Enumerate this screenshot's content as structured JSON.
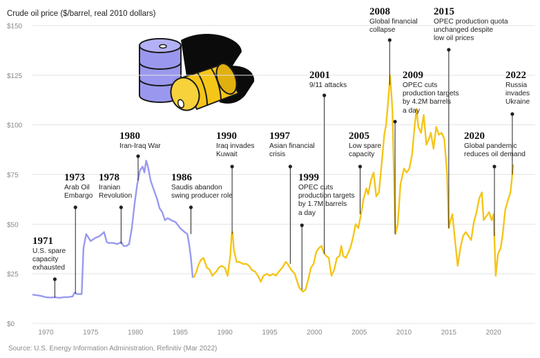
{
  "chart_data": {
    "type": "line",
    "ylabel": "Crude oil price ($/barrel, real 2010 dollars)",
    "source": "Source: U.S. Energy Information Administration, Refinitiv (Mar 2022)",
    "xlim": [
      1968.5,
      2022.8
    ],
    "ylim": [
      0,
      150
    ],
    "x_ticks": [
      1970,
      1975,
      1980,
      1985,
      1990,
      1995,
      2000,
      2005,
      2010,
      2015,
      2020
    ],
    "x_tick_labels": [
      "1970",
      "1975",
      "1980",
      "1985",
      "1990",
      "1995",
      "2000",
      "2005",
      "2010",
      "2015",
      "2020"
    ],
    "y_ticks": [
      0,
      25,
      50,
      75,
      100,
      125,
      150
    ],
    "y_tick_labels": [
      "$0",
      "$25",
      "$50",
      "$75",
      "$100",
      "$125",
      "$150"
    ],
    "grid": "horizontal",
    "colors": {
      "series1": "#9999f0",
      "series2": "#f5c518",
      "gridline": "#e3e3e3",
      "leader": "#222222"
    },
    "series": [
      {
        "color": "#9999f0",
        "points": [
          [
            1968.5,
            14.5
          ],
          [
            1969,
            14.2
          ],
          [
            1969.5,
            13.8
          ],
          [
            1970,
            13.2
          ],
          [
            1970.5,
            13
          ],
          [
            1971,
            13.2
          ],
          [
            1971.5,
            12.9
          ],
          [
            1972,
            13.2
          ],
          [
            1972.5,
            13.3
          ],
          [
            1973,
            13.6
          ],
          [
            1973.2,
            15.5
          ],
          [
            1973.5,
            14.8
          ],
          [
            1974,
            14.8
          ],
          [
            1974.2,
            38
          ],
          [
            1974.5,
            45
          ],
          [
            1975,
            41.5
          ],
          [
            1975.5,
            43
          ],
          [
            1976,
            44
          ],
          [
            1976.5,
            46
          ],
          [
            1976.8,
            41
          ],
          [
            1977,
            40.5
          ],
          [
            1977.5,
            40.5
          ],
          [
            1978,
            40
          ],
          [
            1978.4,
            41
          ],
          [
            1978.7,
            39
          ],
          [
            1979,
            39
          ],
          [
            1979.3,
            40
          ],
          [
            1979.6,
            48
          ],
          [
            1979.9,
            60
          ],
          [
            1980.2,
            70
          ],
          [
            1980.5,
            77
          ],
          [
            1980.8,
            79
          ],
          [
            1981,
            76
          ],
          [
            1981.2,
            82
          ],
          [
            1981.4,
            79
          ],
          [
            1981.7,
            72
          ],
          [
            1982,
            68
          ],
          [
            1982.4,
            63
          ],
          [
            1982.7,
            58
          ],
          [
            1983,
            56
          ],
          [
            1983.3,
            52
          ],
          [
            1983.6,
            53
          ],
          [
            1984,
            52
          ],
          [
            1984.5,
            51
          ],
          [
            1985,
            48
          ],
          [
            1985.5,
            46
          ],
          [
            1985.8,
            45
          ],
          [
            1986,
            40
          ],
          [
            1986.2,
            33
          ],
          [
            1986.4,
            23
          ]
        ]
      },
      {
        "color": "#f5c518",
        "points": [
          [
            1986.5,
            23
          ],
          [
            1986.8,
            26
          ],
          [
            1987,
            29
          ],
          [
            1987.3,
            32
          ],
          [
            1987.6,
            33
          ],
          [
            1988,
            28
          ],
          [
            1988.3,
            27
          ],
          [
            1988.6,
            24
          ],
          [
            1989,
            26
          ],
          [
            1989.3,
            28
          ],
          [
            1989.6,
            29
          ],
          [
            1990,
            28
          ],
          [
            1990.3,
            24
          ],
          [
            1990.6,
            34
          ],
          [
            1990.75,
            45
          ],
          [
            1990.85,
            46
          ],
          [
            1991,
            37
          ],
          [
            1991.3,
            31
          ],
          [
            1991.6,
            31
          ],
          [
            1992,
            30
          ],
          [
            1992.4,
            30
          ],
          [
            1992.7,
            29
          ],
          [
            1993,
            27
          ],
          [
            1993.4,
            26
          ],
          [
            1993.8,
            23
          ],
          [
            1994,
            21
          ],
          [
            1994.3,
            24
          ],
          [
            1994.7,
            25
          ],
          [
            1995,
            24
          ],
          [
            1995.4,
            25
          ],
          [
            1995.7,
            24
          ],
          [
            1996,
            26
          ],
          [
            1996.4,
            28
          ],
          [
            1996.8,
            31
          ],
          [
            1997,
            30
          ],
          [
            1997.4,
            27
          ],
          [
            1997.8,
            25
          ],
          [
            1998,
            22
          ],
          [
            1998.3,
            18
          ],
          [
            1998.7,
            16
          ],
          [
            1999,
            17
          ],
          [
            1999.3,
            22
          ],
          [
            1999.6,
            28
          ],
          [
            1999.9,
            30
          ],
          [
            2000.2,
            36
          ],
          [
            2000.5,
            38
          ],
          [
            2000.8,
            39
          ],
          [
            2001,
            36
          ],
          [
            2001.3,
            34
          ],
          [
            2001.6,
            33
          ],
          [
            2001.9,
            24
          ],
          [
            2002.2,
            27
          ],
          [
            2002.5,
            33
          ],
          [
            2002.8,
            34
          ],
          [
            2003,
            39
          ],
          [
            2003.2,
            34
          ],
          [
            2003.5,
            33
          ],
          [
            2003.8,
            36
          ],
          [
            2004,
            38
          ],
          [
            2004.3,
            43
          ],
          [
            2004.6,
            50
          ],
          [
            2004.9,
            48
          ],
          [
            2005.2,
            55
          ],
          [
            2005.5,
            63
          ],
          [
            2005.8,
            68
          ],
          [
            2006,
            65
          ],
          [
            2006.3,
            72
          ],
          [
            2006.6,
            76
          ],
          [
            2006.9,
            64
          ],
          [
            2007.2,
            66
          ],
          [
            2007.5,
            80
          ],
          [
            2007.8,
            95
          ],
          [
            2008,
            100
          ],
          [
            2008.2,
            110
          ],
          [
            2008.45,
            125
          ],
          [
            2008.7,
            108
          ],
          [
            2008.9,
            70
          ],
          [
            2009.05,
            45
          ],
          [
            2009.3,
            50
          ],
          [
            2009.6,
            70
          ],
          [
            2010,
            78
          ],
          [
            2010.3,
            76
          ],
          [
            2010.6,
            78
          ],
          [
            2010.9,
            85
          ],
          [
            2011.2,
            100
          ],
          [
            2011.4,
            108
          ],
          [
            2011.6,
            99
          ],
          [
            2011.9,
            96
          ],
          [
            2012.2,
            105
          ],
          [
            2012.5,
            90
          ],
          [
            2012.8,
            93
          ],
          [
            2013,
            96
          ],
          [
            2013.3,
            88
          ],
          [
            2013.6,
            99
          ],
          [
            2013.9,
            95
          ],
          [
            2014.2,
            96
          ],
          [
            2014.5,
            93
          ],
          [
            2014.8,
            76
          ],
          [
            2015,
            48
          ],
          [
            2015.2,
            52
          ],
          [
            2015.4,
            55
          ],
          [
            2015.7,
            42
          ],
          [
            2016,
            29
          ],
          [
            2016.3,
            38
          ],
          [
            2016.6,
            44
          ],
          [
            2016.9,
            46
          ],
          [
            2017.2,
            44
          ],
          [
            2017.5,
            42
          ],
          [
            2017.8,
            51
          ],
          [
            2018.1,
            56
          ],
          [
            2018.4,
            63
          ],
          [
            2018.7,
            66
          ],
          [
            2018.9,
            52
          ],
          [
            2019.2,
            54
          ],
          [
            2019.5,
            56
          ],
          [
            2019.8,
            52
          ],
          [
            2020,
            55
          ],
          [
            2020.25,
            24
          ],
          [
            2020.5,
            35
          ],
          [
            2020.8,
            38
          ],
          [
            2021,
            44
          ],
          [
            2021.3,
            57
          ],
          [
            2021.6,
            62
          ],
          [
            2021.9,
            66
          ],
          [
            2022.1,
            75
          ],
          [
            2022.2,
            80
          ]
        ]
      }
    ],
    "annotations": [
      {
        "year": "1971",
        "text": "U.S. spare\ncapacity\nexhausted",
        "x": 1971,
        "y": 13
      },
      {
        "year": "1973",
        "text": "Arab Oil\nEmbargo",
        "x": 1973.3,
        "y": 15
      },
      {
        "year": "1978",
        "text": "Iranian\nRevolution",
        "x": 1978.4,
        "y": 40
      },
      {
        "year": "1980",
        "text": "Iran-Iraq War",
        "x": 1980.3,
        "y": 72
      },
      {
        "year": "1986",
        "text": "Saudis abandon\nswing producer role",
        "x": 1986.2,
        "y": 45
      },
      {
        "year": "1990",
        "text": "Iraq invades\nKuwait",
        "x": 1990.8,
        "y": 45
      },
      {
        "year": "1997",
        "text": "Asian financial\ncrisis",
        "x": 1997.3,
        "y": 30
      },
      {
        "year": "1999",
        "text": "OPEC cuts\nproduction targets\nby 1.7M barrels\na day",
        "x": 1998.6,
        "y": 17
      },
      {
        "year": "2001",
        "text": "9/11 attacks",
        "x": 2001.1,
        "y": 35
      },
      {
        "year": "2005",
        "text": "Low spare\ncapacity",
        "x": 2005.1,
        "y": 55
      },
      {
        "year": "2008",
        "text": "Global financial\ncollapse",
        "x": 2008.4,
        "y": 120
      },
      {
        "year": "2009",
        "text": "OPEC cuts\nproduction targets\nby 4.2M barrels\na day",
        "x": 2009,
        "y": 45
      },
      {
        "year": "2015",
        "text": "OPEC production quota\nunchanged despite\nlow oil prices",
        "x": 2015,
        "y": 48
      },
      {
        "year": "2020",
        "text": "Global pandemic\nreduces oil demand",
        "x": 2020.1,
        "y": 44
      },
      {
        "year": "2022",
        "text": "Russia\ninvades\nUkraine",
        "x": 2022.1,
        "y": 75
      }
    ]
  }
}
